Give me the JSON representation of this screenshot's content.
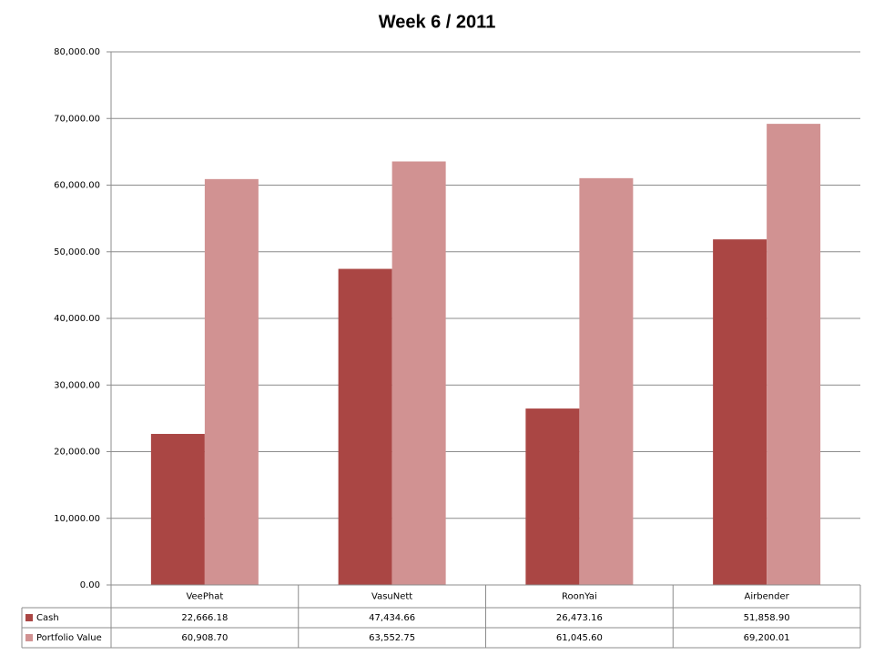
{
  "chart_data": {
    "type": "bar",
    "title": "Week 6 / 2011",
    "categories": [
      "VeePhat",
      "VasuNett",
      "RoonYai",
      "Airbender"
    ],
    "series": [
      {
        "name": "Cash",
        "color": "#aa4644",
        "values": [
          22666.18,
          47434.66,
          26473.16,
          51858.9
        ],
        "value_labels": [
          "22,666.18",
          "47,434.66",
          "26,473.16",
          "51,858.90"
        ]
      },
      {
        "name": "Portfolio Value",
        "color": "#d19292",
        "values": [
          60908.7,
          63552.75,
          61045.6,
          69200.01
        ],
        "value_labels": [
          "60,908.70",
          "63,552.75",
          "61,045.60",
          "69,200.01"
        ]
      }
    ],
    "ylim": [
      0,
      80000
    ],
    "yticks": [
      {
        "value": 0,
        "label": "0.00"
      },
      {
        "value": 10000,
        "label": "10,000.00"
      },
      {
        "value": 20000,
        "label": "20,000.00"
      },
      {
        "value": 30000,
        "label": "30,000.00"
      },
      {
        "value": 40000,
        "label": "40,000.00"
      },
      {
        "value": 50000,
        "label": "50,000.00"
      },
      {
        "value": 60000,
        "label": "60,000.00"
      },
      {
        "value": 70000,
        "label": "70,000.00"
      },
      {
        "value": 80000,
        "label": "80,000.00"
      }
    ],
    "grid": true
  }
}
